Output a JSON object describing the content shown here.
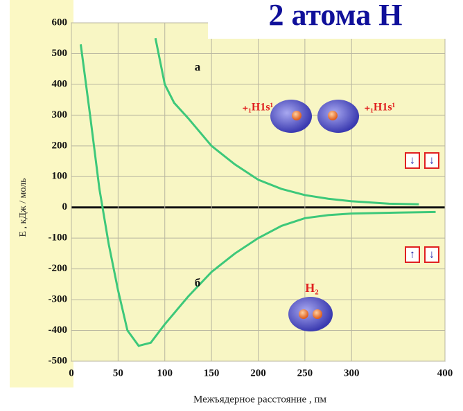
{
  "chart_data": {
    "type": "line",
    "title": "2 атома Н",
    "y_label": "Е , кДж / моль",
    "x_label": "Межъядерное расстояние , пм",
    "xlim": [
      0,
      400
    ],
    "ylim": [
      -500,
      600
    ],
    "xticks": [
      0,
      50,
      100,
      150,
      200,
      250,
      300,
      400
    ],
    "yticks": [
      600,
      500,
      400,
      300,
      200,
      100,
      0,
      -100,
      -200,
      -300,
      -400,
      -500
    ],
    "grid": true,
    "series": [
      {
        "name": "а",
        "color": "#3dc87a",
        "x": [
          90,
          100,
          110,
          125,
          150,
          175,
          200,
          225,
          250,
          275,
          300,
          340,
          372
        ],
        "values": [
          550,
          400,
          340,
          290,
          200,
          140,
          90,
          60,
          40,
          28,
          20,
          12,
          10
        ]
      },
      {
        "name": "б",
        "color": "#3dc87a",
        "x": [
          10,
          20,
          30,
          40,
          50,
          60,
          72,
          85,
          100,
          125,
          150,
          175,
          200,
          225,
          250,
          275,
          300,
          350,
          390
        ],
        "values": [
          530,
          300,
          60,
          -120,
          -270,
          -400,
          -450,
          -440,
          -380,
          -290,
          -210,
          -150,
          -100,
          -60,
          -35,
          -25,
          -20,
          -17,
          -15
        ]
      }
    ],
    "annotations": [
      "₊₁H1s¹",
      "₊₁H1s¹",
      "H₂"
    ]
  }
}
